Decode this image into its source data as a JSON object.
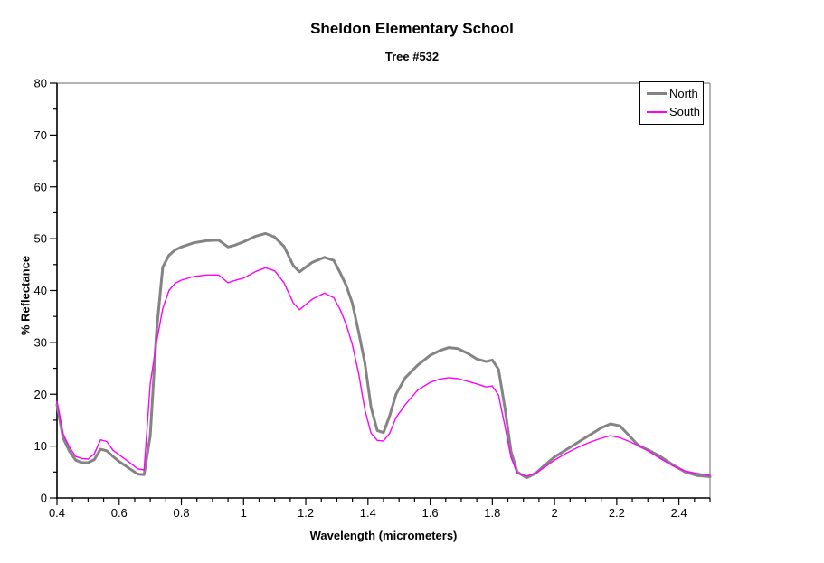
{
  "chart_data": {
    "type": "line",
    "title": "Sheldon Elementary School",
    "subtitle": "Tree #532",
    "xlabel": "Wavelength (micrometers)",
    "ylabel": "% Reflectance",
    "xlim": [
      0.4,
      2.5
    ],
    "ylim": [
      0,
      80
    ],
    "x_tick_labels": [
      "0.4",
      "0.6",
      "0.8",
      "1",
      "1.2",
      "1.4",
      "1.6",
      "1.8",
      "2",
      "2.2",
      "2.4"
    ],
    "y_tick_labels": [
      "0",
      "10",
      "20",
      "30",
      "40",
      "50",
      "60",
      "70",
      "80"
    ],
    "x_minor_step": 0.05,
    "y_major_step": 10,
    "y_minor_step": 5,
    "grid": "off",
    "legend_position": "top-right",
    "colors": {
      "axis": "#000000",
      "plot_border": "#848484",
      "background": "#FFFFFF",
      "text": "#000000",
      "legend_border": "#000000"
    },
    "x": [
      0.4,
      0.42,
      0.44,
      0.46,
      0.48,
      0.5,
      0.52,
      0.54,
      0.56,
      0.58,
      0.6,
      0.63,
      0.66,
      0.68,
      0.7,
      0.72,
      0.74,
      0.76,
      0.78,
      0.8,
      0.84,
      0.88,
      0.92,
      0.95,
      0.97,
      1.0,
      1.04,
      1.07,
      1.1,
      1.13,
      1.16,
      1.18,
      1.22,
      1.26,
      1.29,
      1.31,
      1.33,
      1.35,
      1.37,
      1.39,
      1.41,
      1.43,
      1.45,
      1.47,
      1.49,
      1.52,
      1.56,
      1.6,
      1.63,
      1.66,
      1.69,
      1.72,
      1.75,
      1.78,
      1.8,
      1.82,
      1.84,
      1.86,
      1.88,
      1.91,
      1.94,
      1.97,
      2.0,
      2.04,
      2.08,
      2.12,
      2.15,
      2.18,
      2.21,
      2.24,
      2.27,
      2.3,
      2.34,
      2.38,
      2.42,
      2.46,
      2.5
    ],
    "series": [
      {
        "name": "North",
        "color": "#848484",
        "stroke_width": 3,
        "values": [
          18.0,
          11.5,
          9.0,
          7.3,
          6.8,
          6.8,
          7.4,
          9.4,
          9.1,
          8.0,
          7.0,
          5.8,
          4.6,
          4.5,
          12.0,
          32.0,
          44.5,
          46.8,
          47.8,
          48.4,
          49.2,
          49.6,
          49.7,
          48.4,
          48.7,
          49.4,
          50.5,
          51.0,
          50.3,
          48.5,
          44.8,
          43.6,
          45.4,
          46.4,
          45.8,
          43.5,
          41.0,
          37.5,
          32.0,
          26.0,
          17.5,
          13.0,
          12.6,
          15.9,
          20.0,
          23.2,
          25.6,
          27.5,
          28.4,
          29.0,
          28.8,
          27.9,
          26.8,
          26.3,
          26.6,
          24.8,
          17.5,
          9.0,
          5.0,
          3.9,
          4.8,
          6.4,
          7.9,
          9.4,
          10.9,
          12.4,
          13.5,
          14.3,
          13.9,
          12.0,
          10.1,
          9.3,
          8.0,
          6.4,
          5.0,
          4.3,
          4.1
        ]
      },
      {
        "name": "South",
        "color": "#FF00FF",
        "stroke_width": 1.4,
        "values": [
          18.6,
          12.3,
          9.8,
          8.0,
          7.6,
          7.5,
          8.5,
          11.2,
          10.9,
          9.2,
          8.3,
          7.0,
          5.6,
          5.4,
          22.0,
          30.0,
          36.5,
          40.0,
          41.4,
          42.0,
          42.7,
          43.0,
          43.0,
          41.5,
          41.9,
          42.4,
          43.7,
          44.4,
          43.8,
          41.5,
          37.6,
          36.3,
          38.3,
          39.5,
          38.6,
          36.4,
          33.5,
          29.5,
          24.0,
          17.0,
          12.5,
          11.1,
          11.0,
          12.5,
          15.5,
          18.0,
          20.8,
          22.3,
          22.9,
          23.2,
          23.0,
          22.5,
          22.0,
          21.4,
          21.6,
          19.8,
          14.0,
          7.8,
          4.8,
          4.2,
          4.8,
          6.0,
          7.3,
          8.7,
          9.9,
          10.9,
          11.5,
          12.0,
          11.6,
          10.9,
          10.1,
          9.1,
          7.6,
          6.2,
          5.2,
          4.7,
          4.4
        ]
      }
    ]
  }
}
